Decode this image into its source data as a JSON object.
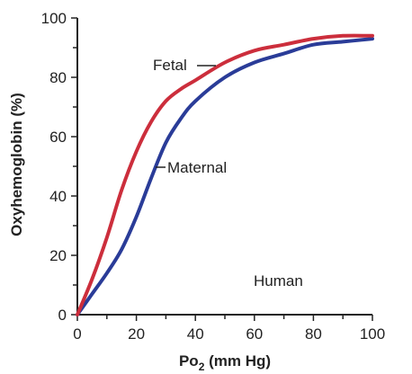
{
  "chart_data": {
    "type": "line",
    "title": "",
    "xlabel": {
      "main": "Po",
      "sub": "2",
      "rest": " (mm Hg)"
    },
    "ylabel": "Oxyhemoglobin (%)",
    "xlim": [
      0,
      100
    ],
    "ylim": [
      0,
      100
    ],
    "xticks": [
      0,
      20,
      40,
      60,
      80,
      100
    ],
    "yticks": [
      0,
      20,
      40,
      60,
      80,
      100
    ],
    "xtick_labels": [
      "0",
      "20",
      "40",
      "60",
      "80",
      "100"
    ],
    "ytick_labels": [
      "0",
      "20",
      "40",
      "60",
      "80",
      "100"
    ],
    "grid": false,
    "series": [
      {
        "name": "Fetal",
        "color": "#cc2e3c",
        "x": [
          0,
          5,
          10,
          15,
          20,
          25,
          30,
          35,
          40,
          50,
          60,
          70,
          80,
          90,
          100
        ],
        "y": [
          0,
          12,
          26,
          42,
          55,
          65,
          72,
          76,
          79,
          85,
          89,
          91,
          93,
          94,
          94
        ]
      },
      {
        "name": "Maternal",
        "color": "#2a3c98",
        "x": [
          0,
          5,
          10,
          15,
          20,
          25,
          30,
          35,
          40,
          50,
          60,
          70,
          80,
          90,
          100
        ],
        "y": [
          0,
          7,
          14,
          22,
          33,
          46,
          58,
          66,
          72,
          80,
          85,
          88,
          91,
          92,
          93
        ]
      }
    ],
    "annotations": [
      {
        "text": "Fetal"
      },
      {
        "text": "Maternal"
      },
      {
        "text": "Human"
      }
    ]
  }
}
